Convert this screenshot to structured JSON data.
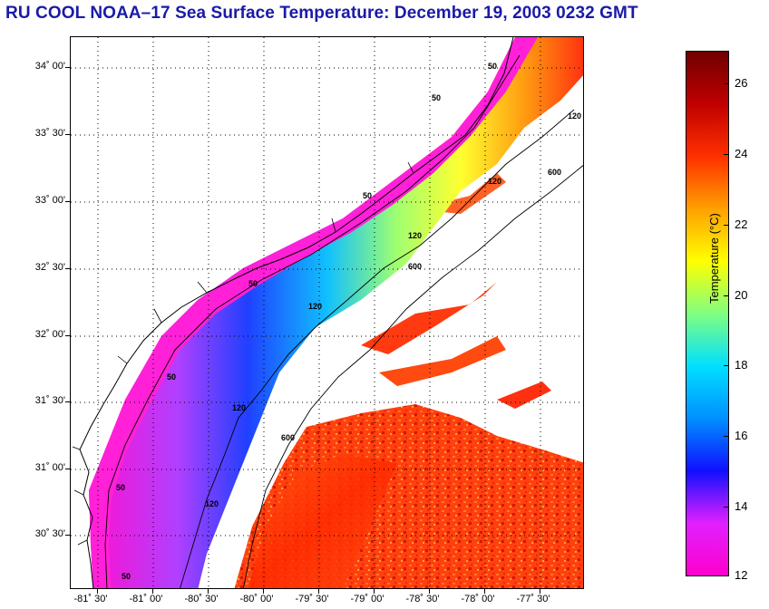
{
  "title": "RU COOL  NOAA–17  Sea Surface Temperature:  December 19, 2003 0232 GMT",
  "map": {
    "lat_labels": [
      "34˚ 00'",
      "33˚ 30'",
      "33˚ 00'",
      "32˚ 30'",
      "32˚ 00'",
      "31˚ 30'",
      "31˚ 00'",
      "30˚ 30'"
    ],
    "lon_labels": [
      "-81˚ 30'",
      "-81˚ 00'",
      "-80˚ 30'",
      "-80˚ 00'",
      "-79˚ 30'",
      "-79˚ 00'",
      "-78˚ 30'",
      "-78˚ 00'",
      "-77˚ 30'"
    ],
    "contour_labels": [
      "50",
      "50",
      "50",
      "50",
      "50",
      "50",
      "50",
      "120",
      "120",
      "120",
      "120",
      "120",
      "120",
      "600",
      "600",
      "600"
    ]
  },
  "colorbar": {
    "title": "Temperature (°C)",
    "ticks": [
      "26",
      "24",
      "22",
      "20",
      "18",
      "16",
      "14",
      "12"
    ],
    "min": 12,
    "max": 27,
    "colors": [
      "#ff00cc",
      "#e020ff",
      "#1010ff",
      "#0090ff",
      "#00e0ff",
      "#80ff80",
      "#ffff00",
      "#ffa000",
      "#ff3000",
      "#c00000",
      "#700000"
    ]
  }
}
